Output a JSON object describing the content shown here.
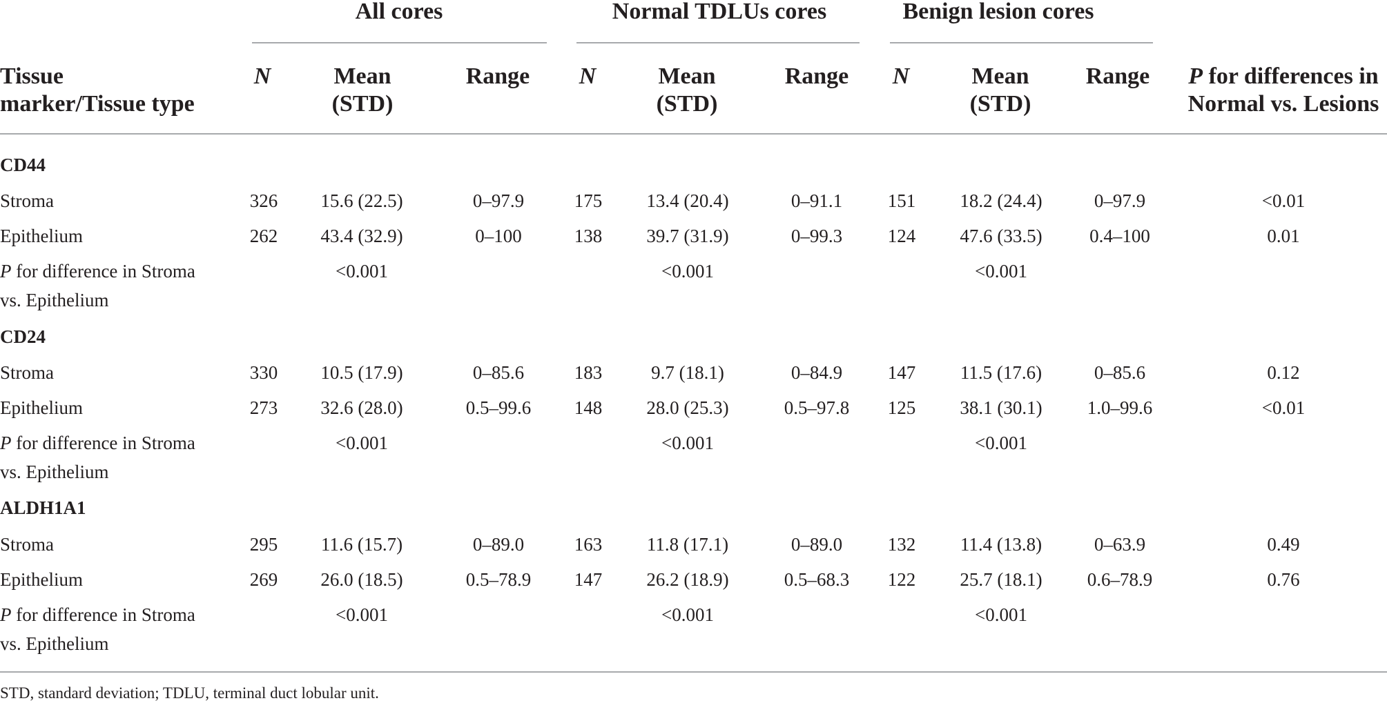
{
  "groups": [
    "All cores",
    "Normal TDLUs cores",
    "Benign lesion cores"
  ],
  "headers": {
    "col0_line1": "Tissue",
    "col0_line2": "marker/Tissue type",
    "n": "N",
    "mean_line1": "Mean",
    "mean_line2": "(STD)",
    "range": "Range",
    "p_italic": "P",
    "p_line1_rest": " for differences in",
    "p_line2": "Normal vs. Lesions"
  },
  "sections": [
    {
      "marker": "CD44",
      "rows": [
        {
          "label": "Stroma",
          "cells": [
            "326",
            "15.6 (22.5)",
            "0–97.9",
            "175",
            "13.4 (20.4)",
            "0–91.1",
            "151",
            "18.2 (24.4)",
            "0–97.9",
            "<0.01"
          ]
        },
        {
          "label": "Epithelium",
          "cells": [
            "262",
            "43.4 (32.9)",
            "0–100",
            "138",
            "39.7 (31.9)",
            "0–99.3",
            "124",
            "47.6 (33.5)",
            "0.4–100",
            "0.01"
          ]
        }
      ],
      "p_row": {
        "label_italic": "P",
        "label_rest": " for difference in Stroma",
        "label_line2": "vs. Epithelium",
        "values": [
          "<0.001",
          "<0.001",
          "<0.001"
        ]
      }
    },
    {
      "marker": "CD24",
      "rows": [
        {
          "label": "Stroma",
          "cells": [
            "330",
            "10.5 (17.9)",
            "0–85.6",
            "183",
            "9.7 (18.1)",
            "0–84.9",
            "147",
            "11.5 (17.6)",
            "0–85.6",
            "0.12"
          ]
        },
        {
          "label": "Epithelium",
          "cells": [
            "273",
            "32.6 (28.0)",
            "0.5–99.6",
            "148",
            "28.0 (25.3)",
            "0.5–97.8",
            "125",
            "38.1 (30.1)",
            "1.0–99.6",
            "<0.01"
          ]
        }
      ],
      "p_row": {
        "label_italic": "P",
        "label_rest": " for difference in Stroma",
        "label_line2": "vs. Epithelium",
        "values": [
          "<0.001",
          "<0.001",
          "<0.001"
        ]
      }
    },
    {
      "marker": "ALDH1A1",
      "rows": [
        {
          "label": "Stroma",
          "cells": [
            "295",
            "11.6 (15.7)",
            "0–89.0",
            "163",
            "11.8 (17.1)",
            "0–89.0",
            "132",
            "11.4 (13.8)",
            "0–63.9",
            "0.49"
          ]
        },
        {
          "label": "Epithelium",
          "cells": [
            "269",
            "26.0 (18.5)",
            "0.5–78.9",
            "147",
            "26.2 (18.9)",
            "0.5–68.3",
            "122",
            "25.7 (18.1)",
            "0.6–78.9",
            "0.76"
          ]
        }
      ],
      "p_row": {
        "label_italic": "P",
        "label_rest": " for difference in Stroma",
        "label_line2": "vs. Epithelium",
        "values": [
          "<0.001",
          "<0.001",
          "<0.001"
        ]
      }
    }
  ],
  "footnote": "STD, standard deviation; TDLU, terminal duct lobular unit."
}
